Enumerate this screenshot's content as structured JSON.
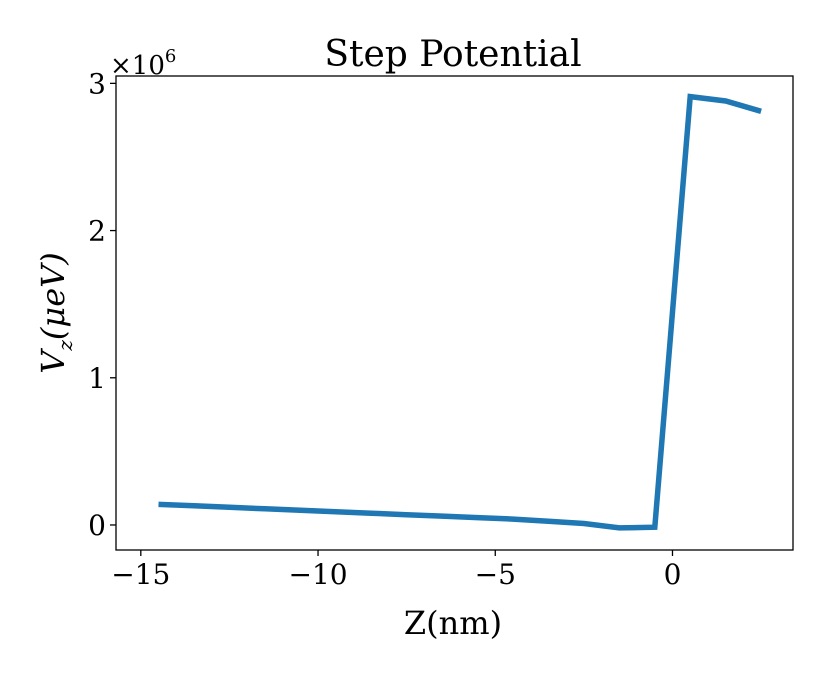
{
  "chart_data": {
    "type": "line",
    "title": "Step Potential",
    "xlabel": "Z(nm)",
    "ylabel_main": "V",
    "ylabel_sub": "z",
    "ylabel_unit": "(μeV)",
    "y_multiplier": "×10",
    "y_multiplier_exp": "6",
    "xlim": [
      -15.7,
      3.4
    ],
    "ylim": [
      -0.17,
      3.05
    ],
    "x_ticks": [
      -15,
      -10,
      -5,
      0
    ],
    "x_tick_labels": [
      "−15",
      "−10",
      "−5",
      "0"
    ],
    "y_ticks": [
      0,
      1,
      2,
      3
    ],
    "y_tick_labels": [
      "0",
      "1",
      "2",
      "3"
    ],
    "grid": false,
    "series": [
      {
        "color": "#1f77b4",
        "x": [
          -14.5,
          -13.5,
          -12.5,
          -11.5,
          -10.5,
          -9.5,
          -8.5,
          -7.5,
          -6.5,
          -5.5,
          -4.5,
          -3.5,
          -2.5,
          -1.5,
          -0.5,
          0.5,
          1.5,
          2.5
        ],
        "y": [
          0.14,
          0.13,
          0.12,
          0.11,
          0.1,
          0.09,
          0.08,
          0.07,
          0.06,
          0.05,
          0.04,
          0.025,
          0.01,
          -0.02,
          -0.015,
          2.91,
          2.88,
          2.81
        ]
      }
    ]
  }
}
